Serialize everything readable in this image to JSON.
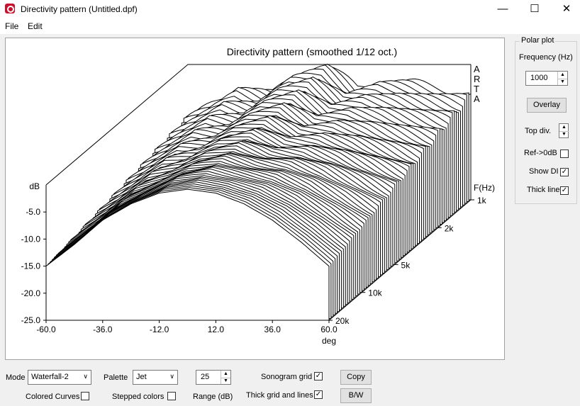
{
  "window": {
    "title": "Directivity pattern (Untitled.dpf)",
    "minimize": "—",
    "maximize": "☐",
    "close": "✕",
    "icon": "arta-app-icon"
  },
  "menu": {
    "items": [
      "File",
      "Edit"
    ]
  },
  "plot": {
    "title": "Directivity pattern (smoothed 1/12 oct.)",
    "watermark": [
      "A",
      "R",
      "T",
      "A"
    ],
    "y_unit": "dB",
    "y_ticks": [
      "-5.0",
      "-10.0",
      "-15.0",
      "-20.0",
      "-25.0"
    ],
    "x_ticks": [
      "-60.0",
      "-36.0",
      "-12.0",
      "12.0",
      "36.0",
      "60.0"
    ],
    "x_unit": "deg",
    "z_unit": "F(Hz)",
    "z_ticks": [
      "1k",
      "2k",
      "5k",
      "10k",
      "20k"
    ]
  },
  "chart_data": {
    "type": "waterfall",
    "title": "Directivity pattern (smoothed 1/12 oct.)",
    "xlabel": "deg",
    "ylabel": "dB",
    "zlabel": "F(Hz)",
    "xlim": [
      -60,
      60
    ],
    "ylim": [
      -25,
      0
    ],
    "zlim": [
      1000,
      20000
    ],
    "z_scale": "log",
    "angles": [
      -60,
      -48,
      -36,
      -24,
      -12,
      0,
      12,
      24,
      36,
      48,
      60
    ],
    "front_curve_freq_hz": 1000,
    "front_curve_db": [
      -10.0,
      -7.2,
      -4.0,
      -5.5,
      -1.5,
      -0.3,
      -4.5,
      -3.0,
      -3.5,
      -4.5,
      -5.5
    ],
    "back_curve_freq_hz": 20000,
    "back_curve_db": [
      -15.0,
      -11.0,
      -6.5,
      -3.5,
      -1.5,
      -0.8,
      -1.5,
      -3.5,
      -6.5,
      -10.5,
      -15.0
    ]
  },
  "polar": {
    "group_label": "Polar plot",
    "frequency_label": "Frequency (Hz)",
    "frequency_value": "1000",
    "overlay_label": "Overlay",
    "top_div_label": "Top div.",
    "ref_label": "Ref->0dB",
    "ref_checked": "",
    "show_di_label": "Show DI",
    "show_di_checked": "✓",
    "thick_line_label": "Thick line",
    "thick_line_checked": "✓"
  },
  "bottom": {
    "mode_label": "Mode",
    "mode_value": "Waterfall-2",
    "palette_label": "Palette",
    "palette_value": "Jet",
    "range_value": "25",
    "range_label": "Range (dB)",
    "colored_curves_label": "Colored Curves",
    "colored_curves_checked": "",
    "stepped_colors_label": "Stepped colors",
    "stepped_colors_checked": "",
    "sonogram_grid_label": "Sonogram grid",
    "sonogram_grid_checked": "✓",
    "thick_grid_label": "Thick grid and  lines",
    "thick_grid_checked": "✓",
    "copy_label": "Copy",
    "bw_label": "B/W"
  }
}
